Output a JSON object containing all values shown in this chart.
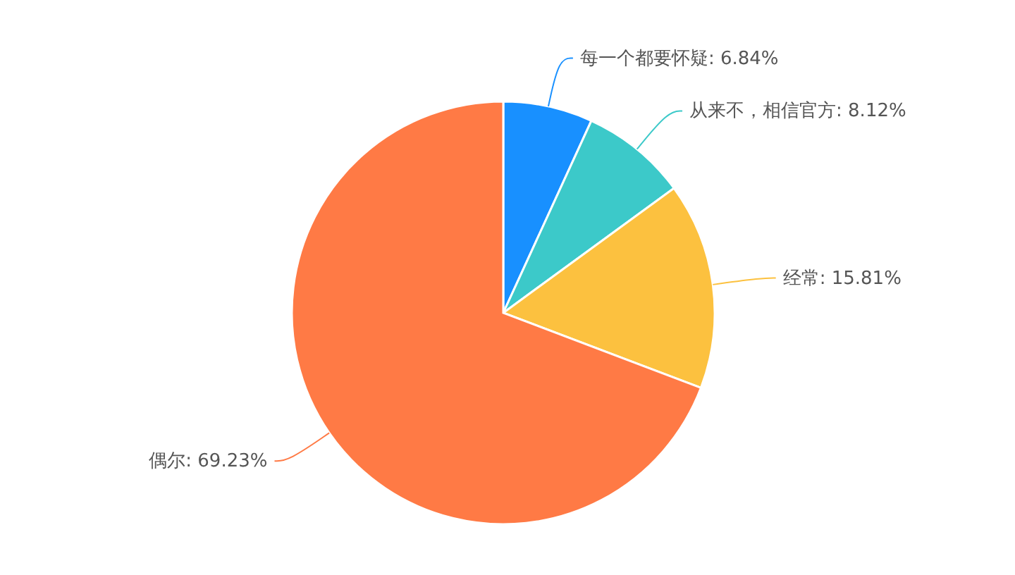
{
  "chart_data": {
    "type": "pie",
    "categories": [
      "每一个都要怀疑",
      "从来不，相信官方",
      "经常",
      "偶尔"
    ],
    "values": [
      6.84,
      8.12,
      15.81,
      69.23
    ],
    "colors": [
      "#1890ff",
      "#3cc9c9",
      "#fcc13f",
      "#ff7a45"
    ],
    "value_labels": [
      "6.84%",
      "8.12%",
      "15.81%",
      "69.23%"
    ]
  }
}
